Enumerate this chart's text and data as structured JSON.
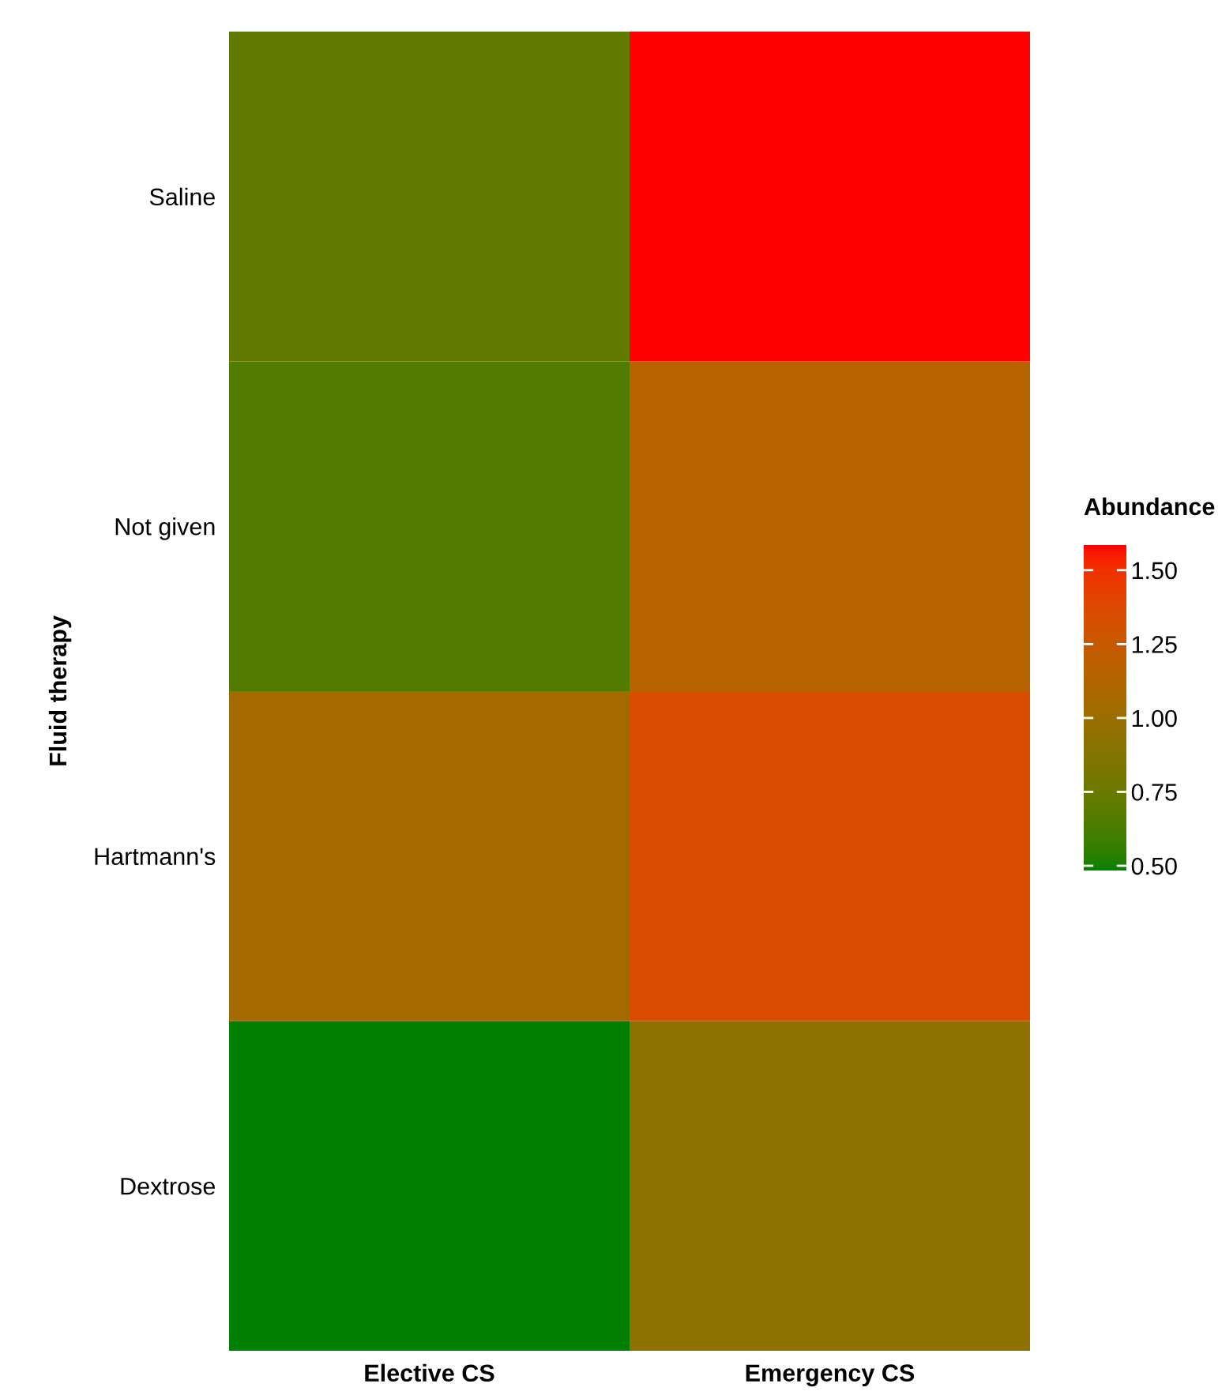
{
  "chart_data": {
    "type": "heatmap",
    "ylabel": "Fluid therapy",
    "clabel": "Abundance",
    "categories": [
      "Elective CS",
      "Emergency CS"
    ],
    "y_categories": [
      "Saline",
      "Not given",
      "Hartmann's",
      "Dextrose"
    ],
    "cells": [
      [
        0.72,
        1.585
      ],
      [
        0.65,
        1.15
      ],
      [
        1.05,
        1.36
      ],
      [
        0.484,
        0.93
      ]
    ],
    "colors": [
      "#008000",
      "#ff0000"
    ],
    "clim": [
      0.484,
      1.585
    ],
    "cticks": [
      {
        "value": 0.5,
        "label": "0.50"
      },
      0.75,
      {
        "value": 1.0,
        "label": "1.00"
      },
      1.25,
      {
        "value": 1.5,
        "label": "1.50"
      }
    ]
  }
}
